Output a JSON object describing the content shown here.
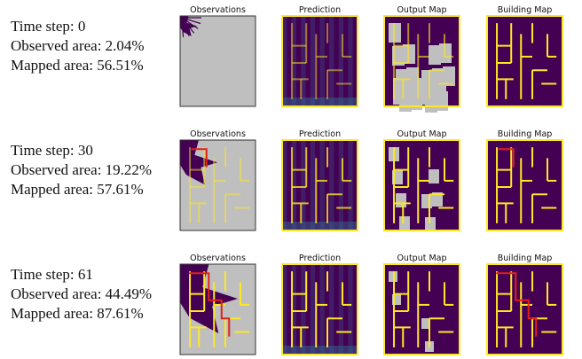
{
  "rows": [
    {
      "lines": [
        "Time step: 0",
        "Observed area: 2.04%",
        "Mapped area: 56.51%"
      ],
      "panels": [
        "Observations",
        "Prediction",
        "Output Map",
        "Building Map"
      ]
    },
    {
      "lines": [
        "Time step: 30",
        "Observed area: 19.22%",
        "Mapped area: 57.61%"
      ],
      "panels": [
        "Observations",
        "Prediction",
        "Output Map",
        "Building Map"
      ]
    },
    {
      "lines": [
        "Time step: 61",
        "Observed area: 44.49%",
        "Mapped area: 87.61%"
      ],
      "panels": [
        "Observations",
        "Prediction",
        "Output Map",
        "Building Map"
      ]
    }
  ]
}
